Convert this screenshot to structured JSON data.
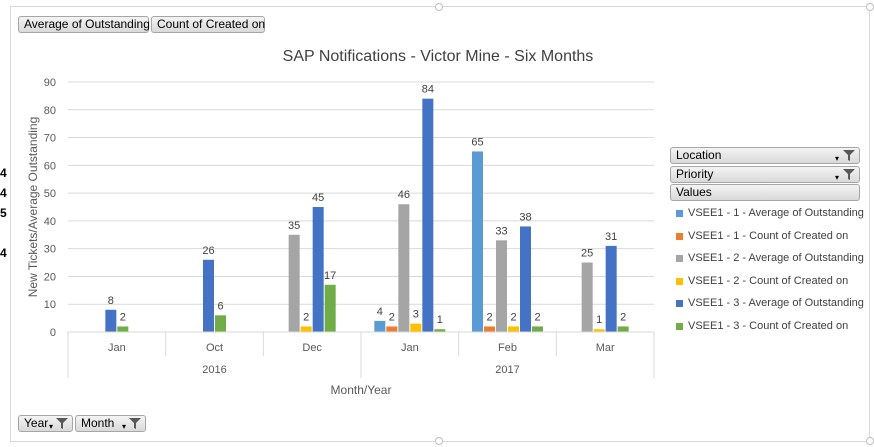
{
  "sheet_fragments": [
    "4",
    "4",
    "5",
    "4"
  ],
  "top_buttons": [
    "Average of Outstanding",
    "Count of Created on"
  ],
  "filters": {
    "location": "Location",
    "priority": "Priority",
    "values": "Values"
  },
  "bottom_buttons": [
    "Year",
    "Month"
  ],
  "colors": {
    "VSEE1 - 1 - Average of Outstanding": "#5b9bd5",
    "VSEE1 - 1 - Count of Created on": "#ed7d31",
    "VSEE1 - 2 - Average of Outstanding": "#a5a5a5",
    "VSEE1 - 2 - Count of Created on": "#ffc000",
    "VSEE1 - 3 - Average of Outstanding": "#4472c4",
    "VSEE1 - 3 - Count of Created on": "#70ad47"
  },
  "chart_data": {
    "type": "bar",
    "title": "SAP Notifications - Victor Mine - Six Months",
    "xlabel": "Month/Year",
    "ylabel": "New Tickets/Average Outstanding",
    "ylim": [
      0,
      90
    ],
    "yticks": [
      0,
      10,
      20,
      30,
      40,
      50,
      60,
      70,
      80,
      90
    ],
    "grid": true,
    "legend_position": "right",
    "categories": [
      "Jan",
      "Oct",
      "Dec",
      "Jan",
      "Feb",
      "Mar"
    ],
    "groups": [
      {
        "label": "2016",
        "categories": [
          "Jan",
          "Oct",
          "Dec"
        ]
      },
      {
        "label": "2017",
        "categories": [
          "Jan",
          "Feb",
          "Mar"
        ]
      }
    ],
    "series": [
      {
        "name": "VSEE1 - 1 - Average of Outstanding",
        "values": [
          null,
          null,
          null,
          4,
          65,
          null
        ]
      },
      {
        "name": "VSEE1 - 1 - Count of Created on",
        "values": [
          null,
          null,
          null,
          2,
          2,
          null
        ]
      },
      {
        "name": "VSEE1 - 2 - Average of Outstanding",
        "values": [
          null,
          null,
          35,
          46,
          33,
          25
        ]
      },
      {
        "name": "VSEE1 - 2 - Count of Created on",
        "values": [
          null,
          null,
          2,
          3,
          2,
          1
        ]
      },
      {
        "name": "VSEE1 - 3 - Average of Outstanding",
        "values": [
          8,
          26,
          45,
          84,
          38,
          31
        ]
      },
      {
        "name": "VSEE1 - 3 - Count of Created on",
        "values": [
          2,
          6,
          17,
          1,
          2,
          2
        ]
      }
    ]
  }
}
